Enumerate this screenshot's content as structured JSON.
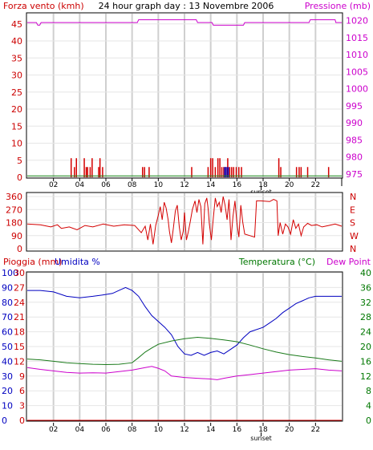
{
  "title": "24 hour graph day : 13 Novembre 2006",
  "colors": {
    "wind": "#d40000",
    "pressure": "#cc00cc",
    "gust_line": "#1a8a1a",
    "direction": "#d40000",
    "rain": "#cc0000",
    "humidity": "#0000c0",
    "temperature": "#1a7a1a",
    "dew_point": "#cc00cc",
    "axis_red": "#cc0000",
    "axis_blue": "#0000c0",
    "axis_green": "#007700",
    "axis_magenta": "#cc00cc",
    "grid": "#cfcfcf",
    "frame": "#000000"
  },
  "x_ticks": [
    "02",
    "04",
    "06",
    "08",
    "10",
    "12",
    "14",
    "16",
    "18",
    "20",
    "22"
  ],
  "sunset_label": "sunset",
  "wind_chart": {
    "left_label": "Forza vento (kmh)",
    "right_label": "Pressione (mb)",
    "wind_ticks": [
      "0",
      "5",
      "10",
      "15",
      "20",
      "25",
      "30",
      "35",
      "40",
      "45"
    ],
    "pressure_ticks": [
      "975",
      "980",
      "985",
      "990",
      "995",
      "1000",
      "1005",
      "1010",
      "1015",
      "1020"
    ],
    "wind_ylim": [
      0,
      48
    ],
    "pressure_ylim": [
      974,
      1022
    ],
    "pressure_series": [
      [
        0.0,
        1019.4
      ],
      [
        0.7,
        1019.4
      ],
      [
        0.8,
        1018.6
      ],
      [
        0.95,
        1018.6
      ],
      [
        1.05,
        1019.4
      ],
      [
        8.4,
        1019.4
      ],
      [
        8.5,
        1020.2
      ],
      [
        12.9,
        1020.2
      ],
      [
        13.0,
        1019.4
      ],
      [
        14.1,
        1019.4
      ],
      [
        14.2,
        1018.6
      ],
      [
        16.5,
        1018.6
      ],
      [
        16.6,
        1019.4
      ],
      [
        21.5,
        1019.4
      ],
      [
        21.6,
        1020.2
      ],
      [
        23.5,
        1020.2
      ],
      [
        23.55,
        1019.4
      ],
      [
        24.0,
        1019.4
      ]
    ],
    "gust_series": [
      [
        0.0,
        0.4
      ],
      [
        24.0,
        0.4
      ]
    ],
    "wind_bars": [
      [
        3.35,
        5.6
      ],
      [
        3.6,
        3.0
      ],
      [
        3.75,
        5.6
      ],
      [
        4.35,
        5.6
      ],
      [
        4.5,
        3.0
      ],
      [
        4.6,
        3.0
      ],
      [
        4.8,
        3.0
      ],
      [
        4.95,
        5.6
      ],
      [
        5.45,
        3.0
      ],
      [
        5.55,
        5.6
      ],
      [
        5.75,
        3.0
      ],
      [
        8.8,
        3.0
      ],
      [
        8.95,
        3.0
      ],
      [
        9.3,
        3.0
      ],
      [
        12.55,
        3.0
      ],
      [
        13.8,
        3.0
      ],
      [
        14.0,
        5.6
      ],
      [
        14.15,
        5.6
      ],
      [
        14.35,
        3.0
      ],
      [
        14.55,
        5.6
      ],
      [
        14.7,
        5.6
      ],
      [
        14.85,
        3.0
      ],
      [
        15.0,
        3.0
      ],
      [
        15.15,
        3.0
      ],
      [
        15.3,
        5.6
      ],
      [
        15.45,
        3.0
      ],
      [
        15.6,
        3.0
      ],
      [
        15.75,
        3.0
      ],
      [
        15.95,
        3.0
      ],
      [
        16.15,
        3.0
      ],
      [
        16.35,
        3.0
      ],
      [
        19.2,
        5.6
      ],
      [
        19.35,
        3.0
      ],
      [
        20.55,
        3.0
      ],
      [
        20.75,
        3.0
      ],
      [
        20.9,
        3.0
      ],
      [
        21.4,
        3.0
      ],
      [
        23.0,
        3.0
      ]
    ]
  },
  "direction_chart": {
    "ticks": [
      "0",
      "90",
      "180",
      "270",
      "360"
    ],
    "cardinals": [
      "N",
      "W",
      "S",
      "E",
      "N"
    ],
    "ylim": [
      0,
      360
    ],
    "series": [
      [
        0,
        170
      ],
      [
        1,
        165
      ],
      [
        1.8,
        150
      ],
      [
        2.3,
        165
      ],
      [
        2.6,
        140
      ],
      [
        3.2,
        150
      ],
      [
        3.8,
        130
      ],
      [
        4.4,
        160
      ],
      [
        5.0,
        150
      ],
      [
        5.8,
        170
      ],
      [
        6.6,
        155
      ],
      [
        7.4,
        165
      ],
      [
        8.2,
        160
      ],
      [
        8.7,
        110
      ],
      [
        9.0,
        155
      ],
      [
        9.2,
        60
      ],
      [
        9.4,
        170
      ],
      [
        9.6,
        30
      ],
      [
        9.8,
        160
      ],
      [
        10.0,
        230
      ],
      [
        10.15,
        290
      ],
      [
        10.3,
        200
      ],
      [
        10.45,
        320
      ],
      [
        10.6,
        280
      ],
      [
        10.75,
        200
      ],
      [
        10.85,
        120
      ],
      [
        11.0,
        40
      ],
      [
        11.15,
        140
      ],
      [
        11.3,
        260
      ],
      [
        11.45,
        300
      ],
      [
        11.6,
        150
      ],
      [
        11.75,
        60
      ],
      [
        11.9,
        120
      ],
      [
        12.0,
        250
      ],
      [
        12.15,
        60
      ],
      [
        12.3,
        120
      ],
      [
        12.45,
        190
      ],
      [
        12.6,
        270
      ],
      [
        12.8,
        330
      ],
      [
        12.95,
        250
      ],
      [
        13.1,
        340
      ],
      [
        13.25,
        290
      ],
      [
        13.4,
        30
      ],
      [
        13.55,
        310
      ],
      [
        13.7,
        350
      ],
      [
        13.8,
        280
      ],
      [
        13.9,
        170
      ],
      [
        14.05,
        60
      ],
      [
        14.2,
        210
      ],
      [
        14.35,
        350
      ],
      [
        14.5,
        290
      ],
      [
        14.65,
        320
      ],
      [
        14.8,
        250
      ],
      [
        14.95,
        360
      ],
      [
        15.1,
        300
      ],
      [
        15.25,
        200
      ],
      [
        15.4,
        340
      ],
      [
        15.55,
        60
      ],
      [
        15.7,
        220
      ],
      [
        15.85,
        330
      ],
      [
        16.0,
        180
      ],
      [
        16.15,
        80
      ],
      [
        16.3,
        300
      ],
      [
        16.45,
        180
      ],
      [
        16.6,
        100
      ],
      [
        17.0,
        90
      ],
      [
        17.35,
        80
      ],
      [
        17.5,
        330
      ],
      [
        17.8,
        330
      ],
      [
        18.5,
        325
      ],
      [
        18.8,
        340
      ],
      [
        19.05,
        330
      ],
      [
        19.15,
        90
      ],
      [
        19.3,
        180
      ],
      [
        19.5,
        100
      ],
      [
        19.7,
        170
      ],
      [
        19.9,
        150
      ],
      [
        20.1,
        100
      ],
      [
        20.3,
        200
      ],
      [
        20.5,
        140
      ],
      [
        20.7,
        170
      ],
      [
        20.9,
        90
      ],
      [
        21.1,
        150
      ],
      [
        21.4,
        175
      ],
      [
        21.7,
        160
      ],
      [
        22.1,
        165
      ],
      [
        22.5,
        150
      ],
      [
        23.0,
        160
      ],
      [
        23.5,
        170
      ],
      [
        24.0,
        155
      ]
    ]
  },
  "rain_chart": {
    "rain_label": "Pioggia (mm)",
    "humidity_label": "Umidita %",
    "temp_label": "Temperatura (°C)",
    "dew_label": "Dew Point",
    "rain_ticks": [
      "0",
      "3",
      "6",
      "9",
      "12",
      "15",
      "18",
      "21",
      "24",
      "27",
      "30"
    ],
    "humidity_ticks": [
      "0",
      "10",
      "20",
      "30",
      "40",
      "50",
      "60",
      "70",
      "80",
      "90",
      "100"
    ],
    "temp_ticks": [
      "0",
      "4",
      "8",
      "12",
      "16",
      "20",
      "24",
      "28",
      "32",
      "36",
      "40"
    ],
    "temp_ylim": [
      0,
      40
    ],
    "humidity_ylim": [
      0,
      100
    ],
    "rain_ylim": [
      0,
      30
    ],
    "rain_series": [
      [
        0,
        0
      ],
      [
        24,
        0
      ]
    ],
    "humidity_series": [
      [
        0,
        88
      ],
      [
        1,
        88
      ],
      [
        2,
        87
      ],
      [
        3,
        84
      ],
      [
        4,
        83
      ],
      [
        5,
        84
      ],
      [
        5.8,
        85
      ],
      [
        6.5,
        86
      ],
      [
        7.0,
        88
      ],
      [
        7.5,
        90
      ],
      [
        8.0,
        88
      ],
      [
        8.5,
        84
      ],
      [
        9.0,
        77
      ],
      [
        9.5,
        71
      ],
      [
        10.0,
        67
      ],
      [
        10.5,
        63
      ],
      [
        11.0,
        58
      ],
      [
        11.5,
        50
      ],
      [
        12.0,
        45
      ],
      [
        12.5,
        44
      ],
      [
        13.0,
        46
      ],
      [
        13.5,
        44
      ],
      [
        14.0,
        46
      ],
      [
        14.5,
        47
      ],
      [
        15.0,
        45
      ],
      [
        15.5,
        48
      ],
      [
        16.0,
        51
      ],
      [
        16.5,
        56
      ],
      [
        17.0,
        60
      ],
      [
        18.0,
        63
      ],
      [
        18.5,
        66
      ],
      [
        19.0,
        69
      ],
      [
        19.5,
        73
      ],
      [
        20.0,
        76
      ],
      [
        20.5,
        79
      ],
      [
        21.0,
        81
      ],
      [
        21.5,
        83
      ],
      [
        22.0,
        84
      ],
      [
        23.0,
        84
      ],
      [
        24.0,
        84
      ]
    ],
    "temperature_series": [
      [
        0,
        16.6
      ],
      [
        1,
        16.4
      ],
      [
        2,
        16.0
      ],
      [
        3,
        15.6
      ],
      [
        4,
        15.4
      ],
      [
        5,
        15.2
      ],
      [
        6,
        15.1
      ],
      [
        7,
        15.2
      ],
      [
        8,
        15.6
      ],
      [
        8.5,
        17.0
      ],
      [
        9,
        18.5
      ],
      [
        9.5,
        19.6
      ],
      [
        10,
        20.6
      ],
      [
        11,
        21.5
      ],
      [
        12,
        22.1
      ],
      [
        13,
        22.5
      ],
      [
        14,
        22.2
      ],
      [
        15,
        21.8
      ],
      [
        16,
        21.3
      ],
      [
        17,
        20.4
      ],
      [
        18,
        19.4
      ],
      [
        19,
        18.5
      ],
      [
        20,
        17.8
      ],
      [
        21,
        17.3
      ],
      [
        22,
        16.9
      ],
      [
        23,
        16.4
      ],
      [
        24,
        16.0
      ]
    ],
    "dew_point_series": [
      [
        0,
        14.3
      ],
      [
        1,
        13.8
      ],
      [
        2,
        13.4
      ],
      [
        3,
        13.0
      ],
      [
        4,
        12.8
      ],
      [
        5,
        12.9
      ],
      [
        6,
        12.8
      ],
      [
        7,
        13.2
      ],
      [
        8,
        13.6
      ],
      [
        9,
        14.3
      ],
      [
        9.5,
        14.6
      ],
      [
        10,
        14.1
      ],
      [
        10.5,
        13.4
      ],
      [
        11,
        12.0
      ],
      [
        12,
        11.6
      ],
      [
        13,
        11.4
      ],
      [
        14,
        11.2
      ],
      [
        14.5,
        11.0
      ],
      [
        15,
        11.4
      ],
      [
        16,
        12.0
      ],
      [
        17,
        12.4
      ],
      [
        18,
        12.8
      ],
      [
        19,
        13.2
      ],
      [
        20,
        13.6
      ],
      [
        21,
        13.8
      ],
      [
        22,
        14.0
      ],
      [
        23,
        13.6
      ],
      [
        24,
        13.4
      ]
    ]
  }
}
